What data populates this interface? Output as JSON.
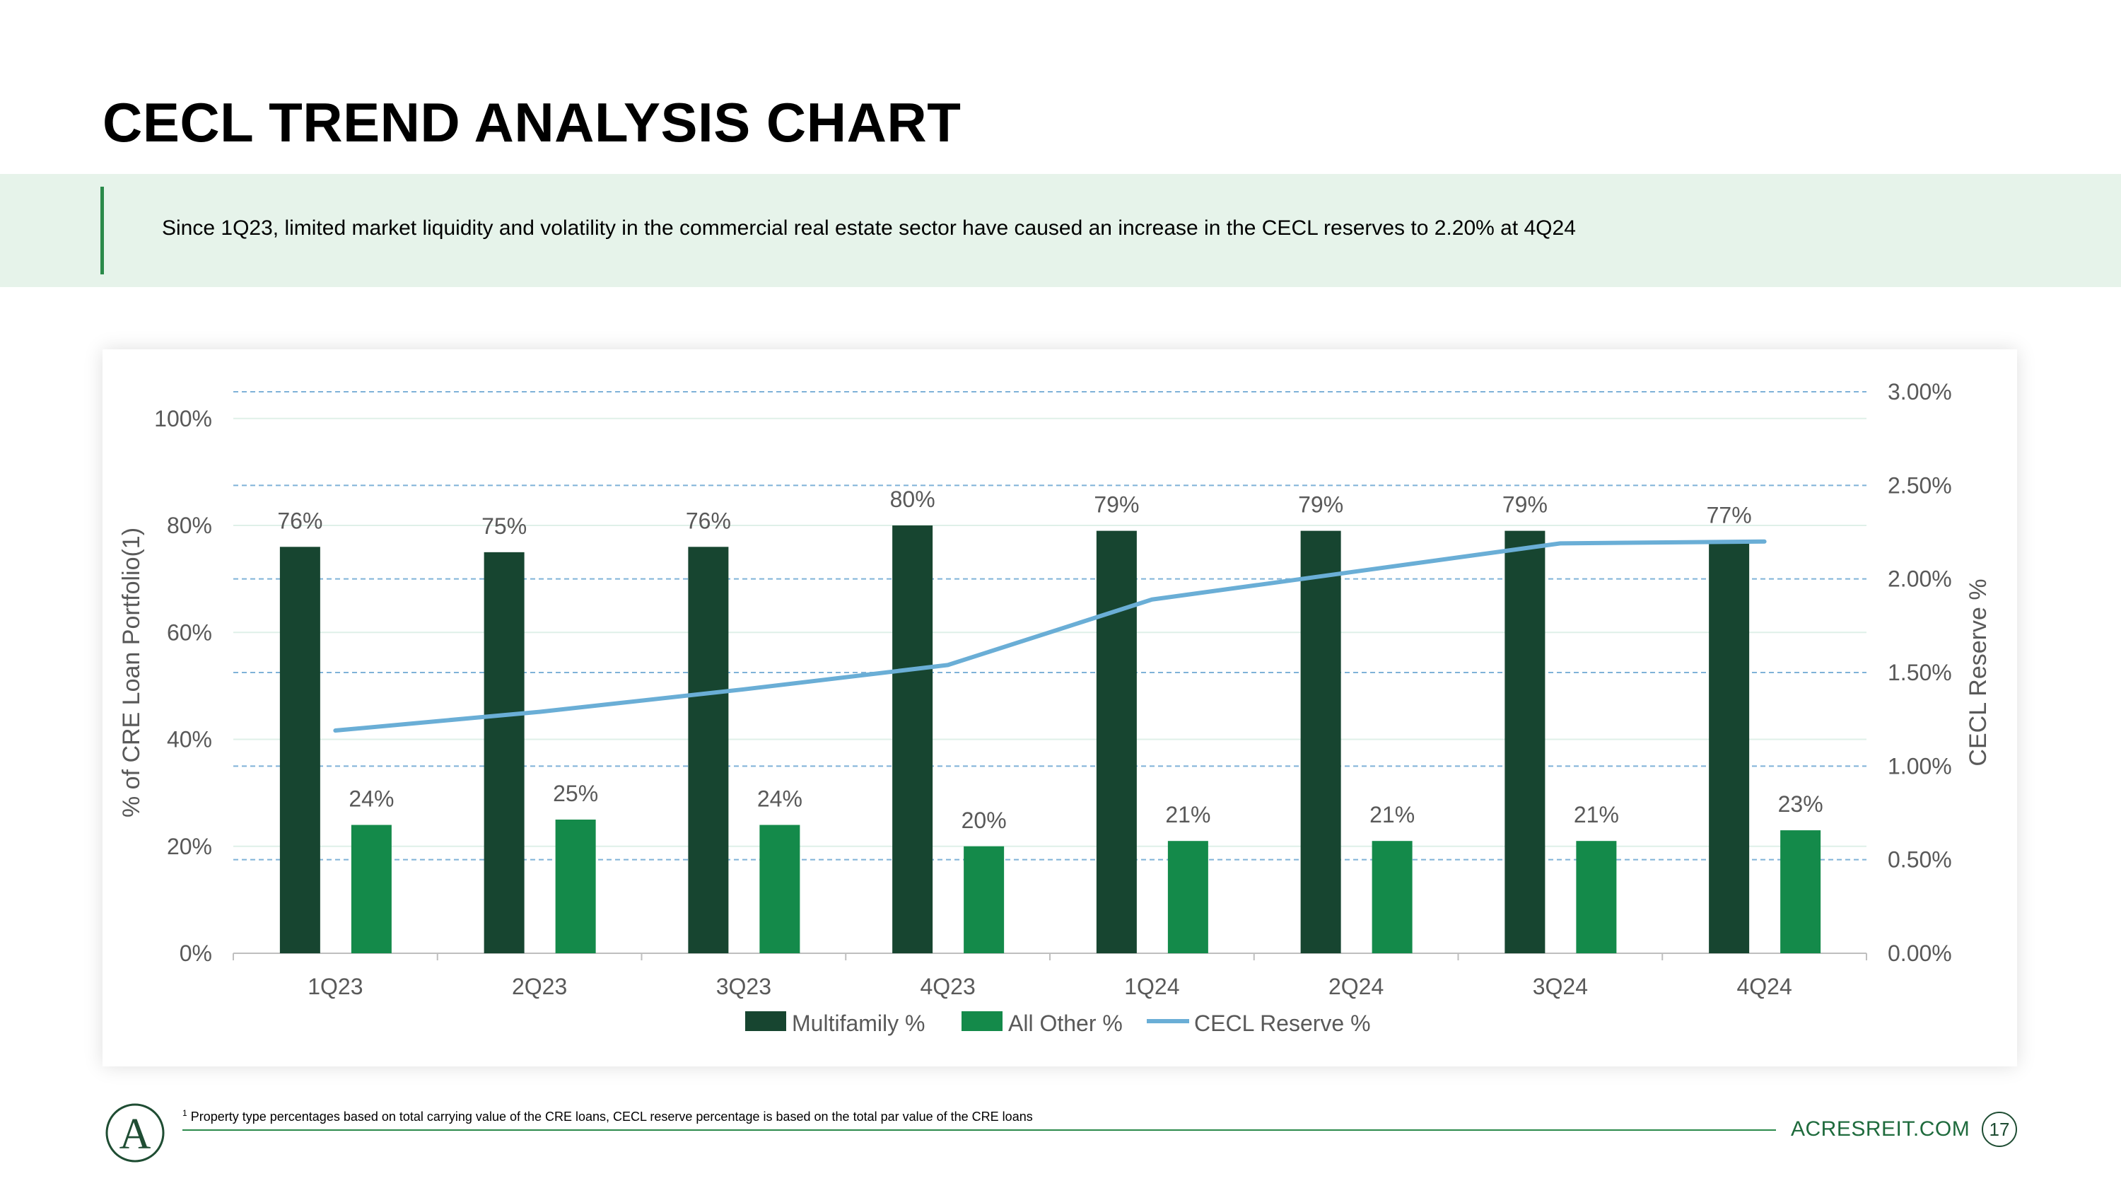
{
  "page": {
    "title": "CECL TREND ANALYSIS CHART",
    "banner_text": "Since 1Q23, limited market liquidity and volatility in the commercial real estate sector have caused an increase in the CECL reserves to 2.20% at 4Q24",
    "footnote_marker": "1",
    "footnote_text": "Property type percentages based on total carrying value of the CRE loans, CECL reserve percentage is based on the total par value of the CRE loans",
    "website": "ACRESREIT.COM",
    "page_number": "17",
    "logo_letter": "A"
  },
  "colors": {
    "multifamily": "#174530",
    "all_other": "#148a4a",
    "cecl_line": "#6aaed6",
    "grid_dashed": "#7fb2d8",
    "grid_solid": "#dff0e8",
    "text": "#595959"
  },
  "chart_data": {
    "type": "bar",
    "title": "",
    "categories": [
      "1Q23",
      "2Q23",
      "3Q23",
      "4Q23",
      "1Q24",
      "2Q24",
      "3Q24",
      "4Q24"
    ],
    "series": [
      {
        "name": "Multifamily %",
        "type": "bar",
        "axis": "left",
        "values": [
          76,
          75,
          76,
          80,
          79,
          79,
          79,
          77
        ],
        "labels": [
          "76%",
          "75%",
          "76%",
          "80%",
          "79%",
          "79%",
          "79%",
          "77%"
        ]
      },
      {
        "name": "All Other %",
        "type": "bar",
        "axis": "left",
        "values": [
          24,
          25,
          24,
          20,
          21,
          21,
          21,
          23
        ],
        "labels": [
          "24%",
          "25%",
          "24%",
          "20%",
          "21%",
          "21%",
          "21%",
          "23%"
        ]
      },
      {
        "name": "CECL Reserve %",
        "type": "line",
        "axis": "right",
        "values": [
          1.19,
          1.29,
          1.41,
          1.54,
          1.89,
          2.04,
          2.19,
          2.2
        ]
      }
    ],
    "ylabel": "% of CRE Loan Portfolio(1)",
    "ylabel_right": "CECL Reserve %",
    "ylim": [
      0,
      100
    ],
    "ylim_right": [
      0,
      3.0
    ],
    "yticks": [
      "0%",
      "20%",
      "40%",
      "60%",
      "80%",
      "100%"
    ],
    "yticks_right": [
      "0.00%",
      "0.50%",
      "1.00%",
      "1.50%",
      "2.00%",
      "2.50%",
      "3.00%"
    ],
    "legend": "bottom",
    "grid": true
  }
}
